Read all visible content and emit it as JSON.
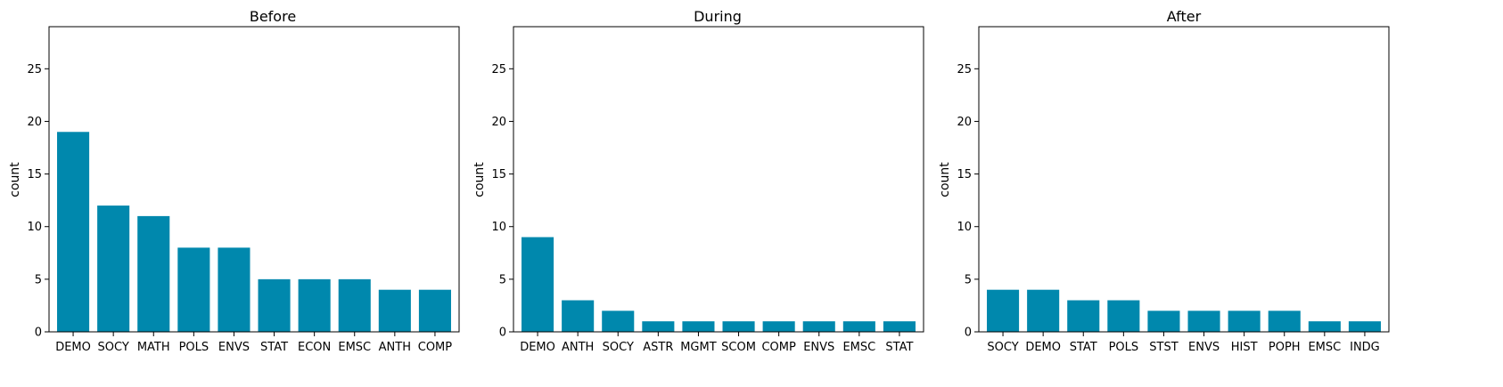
{
  "bar_color": "#0088ad",
  "chart_data": [
    {
      "type": "bar",
      "title": "Before",
      "xlabel": "",
      "ylabel": "count",
      "ylim": [
        0,
        29
      ],
      "yticks": [
        0,
        5,
        10,
        15,
        20,
        25
      ],
      "categories": [
        "DEMO",
        "SOCY",
        "MATH",
        "POLS",
        "ENVS",
        "STAT",
        "ECON",
        "EMSC",
        "ANTH",
        "COMP"
      ],
      "values": [
        19,
        12,
        11,
        8,
        8,
        5,
        5,
        5,
        4,
        4
      ]
    },
    {
      "type": "bar",
      "title": "During",
      "xlabel": "",
      "ylabel": "count",
      "ylim": [
        0,
        29
      ],
      "yticks": [
        0,
        5,
        10,
        15,
        20,
        25
      ],
      "categories": [
        "DEMO",
        "ANTH",
        "SOCY",
        "ASTR",
        "MGMT",
        "SCOM",
        "COMP",
        "ENVS",
        "EMSC",
        "STAT"
      ],
      "values": [
        9,
        3,
        2,
        1,
        1,
        1,
        1,
        1,
        1,
        1
      ]
    },
    {
      "type": "bar",
      "title": "After",
      "xlabel": "",
      "ylabel": "count",
      "ylim": [
        0,
        29
      ],
      "yticks": [
        0,
        5,
        10,
        15,
        20,
        25
      ],
      "categories": [
        "SOCY",
        "DEMO",
        "STAT",
        "POLS",
        "STST",
        "ENVS",
        "HIST",
        "POPH",
        "EMSC",
        "INDG"
      ],
      "values": [
        4,
        4,
        3,
        3,
        2,
        2,
        2,
        2,
        1,
        1
      ]
    }
  ]
}
